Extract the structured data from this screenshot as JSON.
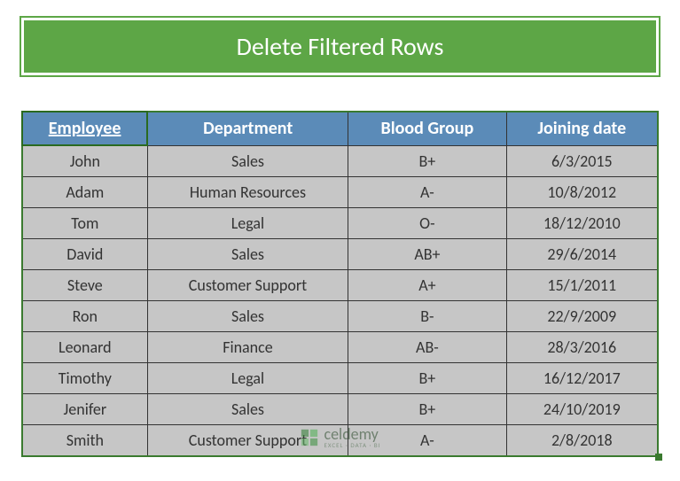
{
  "title": "Delete Filtered Rows",
  "title_bg": "#5da646",
  "title_color": "#ffffff",
  "header_bg": "#5b8bb8",
  "header_color": "#ffffff",
  "cell_bg": "#c6c6c6",
  "cell_color": "#333333",
  "selection_border": "#3a7a2f",
  "columns": [
    {
      "label": "Employee",
      "key": "employee",
      "selected": true
    },
    {
      "label": "Department",
      "key": "department",
      "selected": false
    },
    {
      "label": "Blood Group",
      "key": "blood_group",
      "selected": false
    },
    {
      "label": "Joining date",
      "key": "joining_date",
      "selected": false
    }
  ],
  "rows": [
    {
      "employee": "John",
      "department": "Sales",
      "blood_group": "B+",
      "joining_date": "6/3/2015"
    },
    {
      "employee": "Adam",
      "department": "Human Resources",
      "blood_group": "A-",
      "joining_date": "10/8/2012"
    },
    {
      "employee": "Tom",
      "department": "Legal",
      "blood_group": "O-",
      "joining_date": "18/12/2010"
    },
    {
      "employee": "David",
      "department": "Sales",
      "blood_group": "AB+",
      "joining_date": "29/6/2014"
    },
    {
      "employee": "Steve",
      "department": "Customer Support",
      "blood_group": "A+",
      "joining_date": "15/1/2011"
    },
    {
      "employee": "Ron",
      "department": "Sales",
      "blood_group": "B-",
      "joining_date": "22/9/2009"
    },
    {
      "employee": "Leonard",
      "department": "Finance",
      "blood_group": "AB-",
      "joining_date": "28/3/2016"
    },
    {
      "employee": "Timothy",
      "department": "Legal",
      "blood_group": "B+",
      "joining_date": "16/12/2017"
    },
    {
      "employee": "Jenifer",
      "department": "Sales",
      "blood_group": "B+",
      "joining_date": "24/10/2019"
    },
    {
      "employee": "Smith",
      "department": "Customer Support",
      "blood_group": "A-",
      "joining_date": "2/8/2018"
    }
  ],
  "watermark": {
    "main": "celdemy",
    "sub": "EXCEL · DATA · BI"
  }
}
